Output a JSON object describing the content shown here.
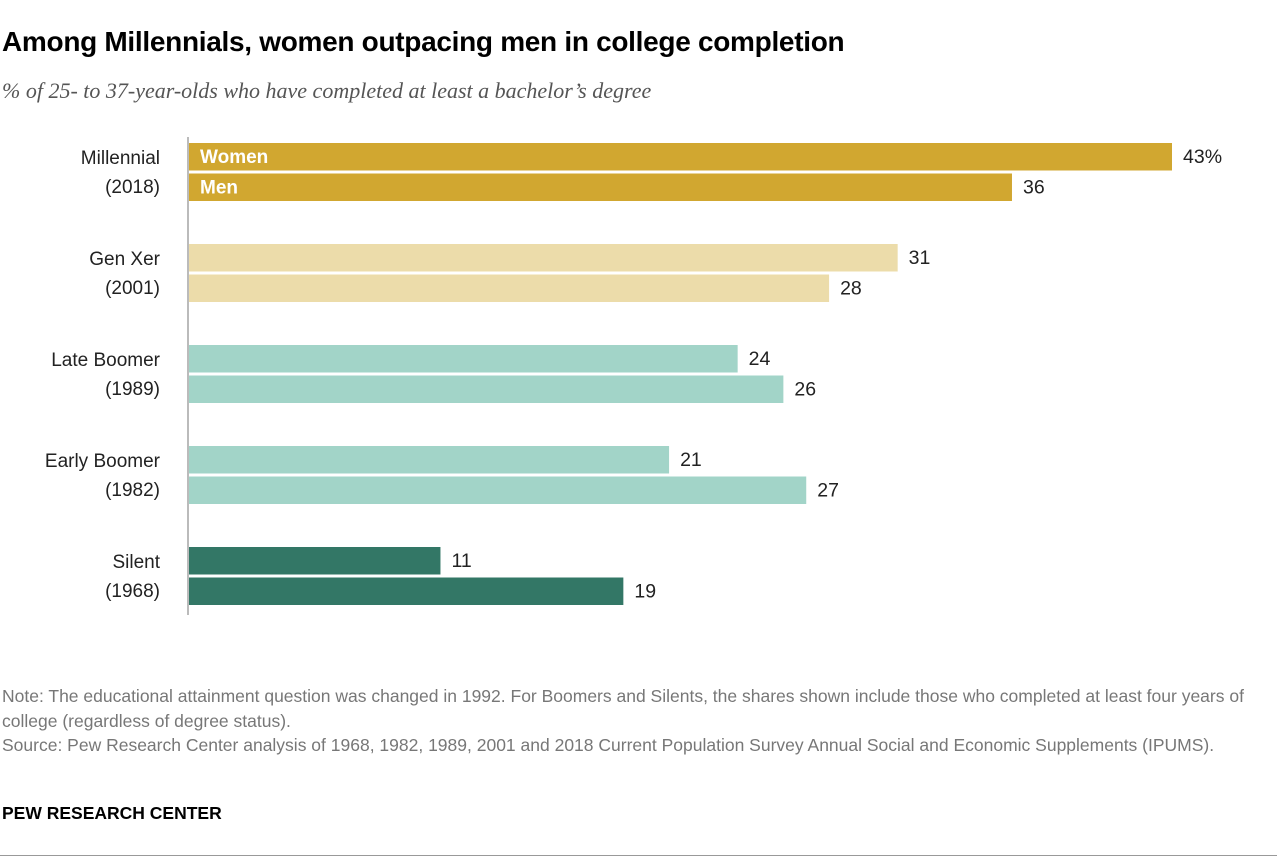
{
  "title": "Among Millennials, women outpacing men in college completion",
  "subtitle": "% of 25- to 37-year-olds who have completed at least a bachelor’s degree",
  "chart_data": {
    "type": "bar",
    "orientation": "horizontal",
    "categories": [
      {
        "name": "Millennial",
        "year": "(2018)",
        "color": "#d1a730"
      },
      {
        "name": "Gen Xer",
        "year": "(2001)",
        "color": "#ecdcaa"
      },
      {
        "name": "Late Boomer",
        "year": "(1989)",
        "color": "#a2d4c8"
      },
      {
        "name": "Early Boomer",
        "year": "(1982)",
        "color": "#a2d4c8"
      },
      {
        "name": "Silent",
        "year": "(1968)",
        "color": "#337766"
      }
    ],
    "series": [
      {
        "name": "Women",
        "values": [
          43,
          31,
          24,
          21,
          11
        ]
      },
      {
        "name": "Men",
        "values": [
          36,
          28,
          26,
          27,
          19
        ]
      }
    ],
    "value_labels": [
      [
        "43%",
        "36"
      ],
      [
        "31",
        "28"
      ],
      [
        "24",
        "26"
      ],
      [
        "21",
        "27"
      ],
      [
        "11",
        "19"
      ]
    ],
    "xlim": [
      0,
      43
    ],
    "grid": false,
    "legend": "inline labels on first bars"
  },
  "note": "Note: The educational attainment question was changed in 1992. For Boomers and Silents, the shares shown include those who completed at least four years of college (regardless of degree status).",
  "source": "Source: Pew Research Center analysis of 1968, 1982, 1989, 2001 and 2018 Current Population Survey Annual Social and Economic Supplements (IPUMS).",
  "logo": "PEW RESEARCH CENTER"
}
